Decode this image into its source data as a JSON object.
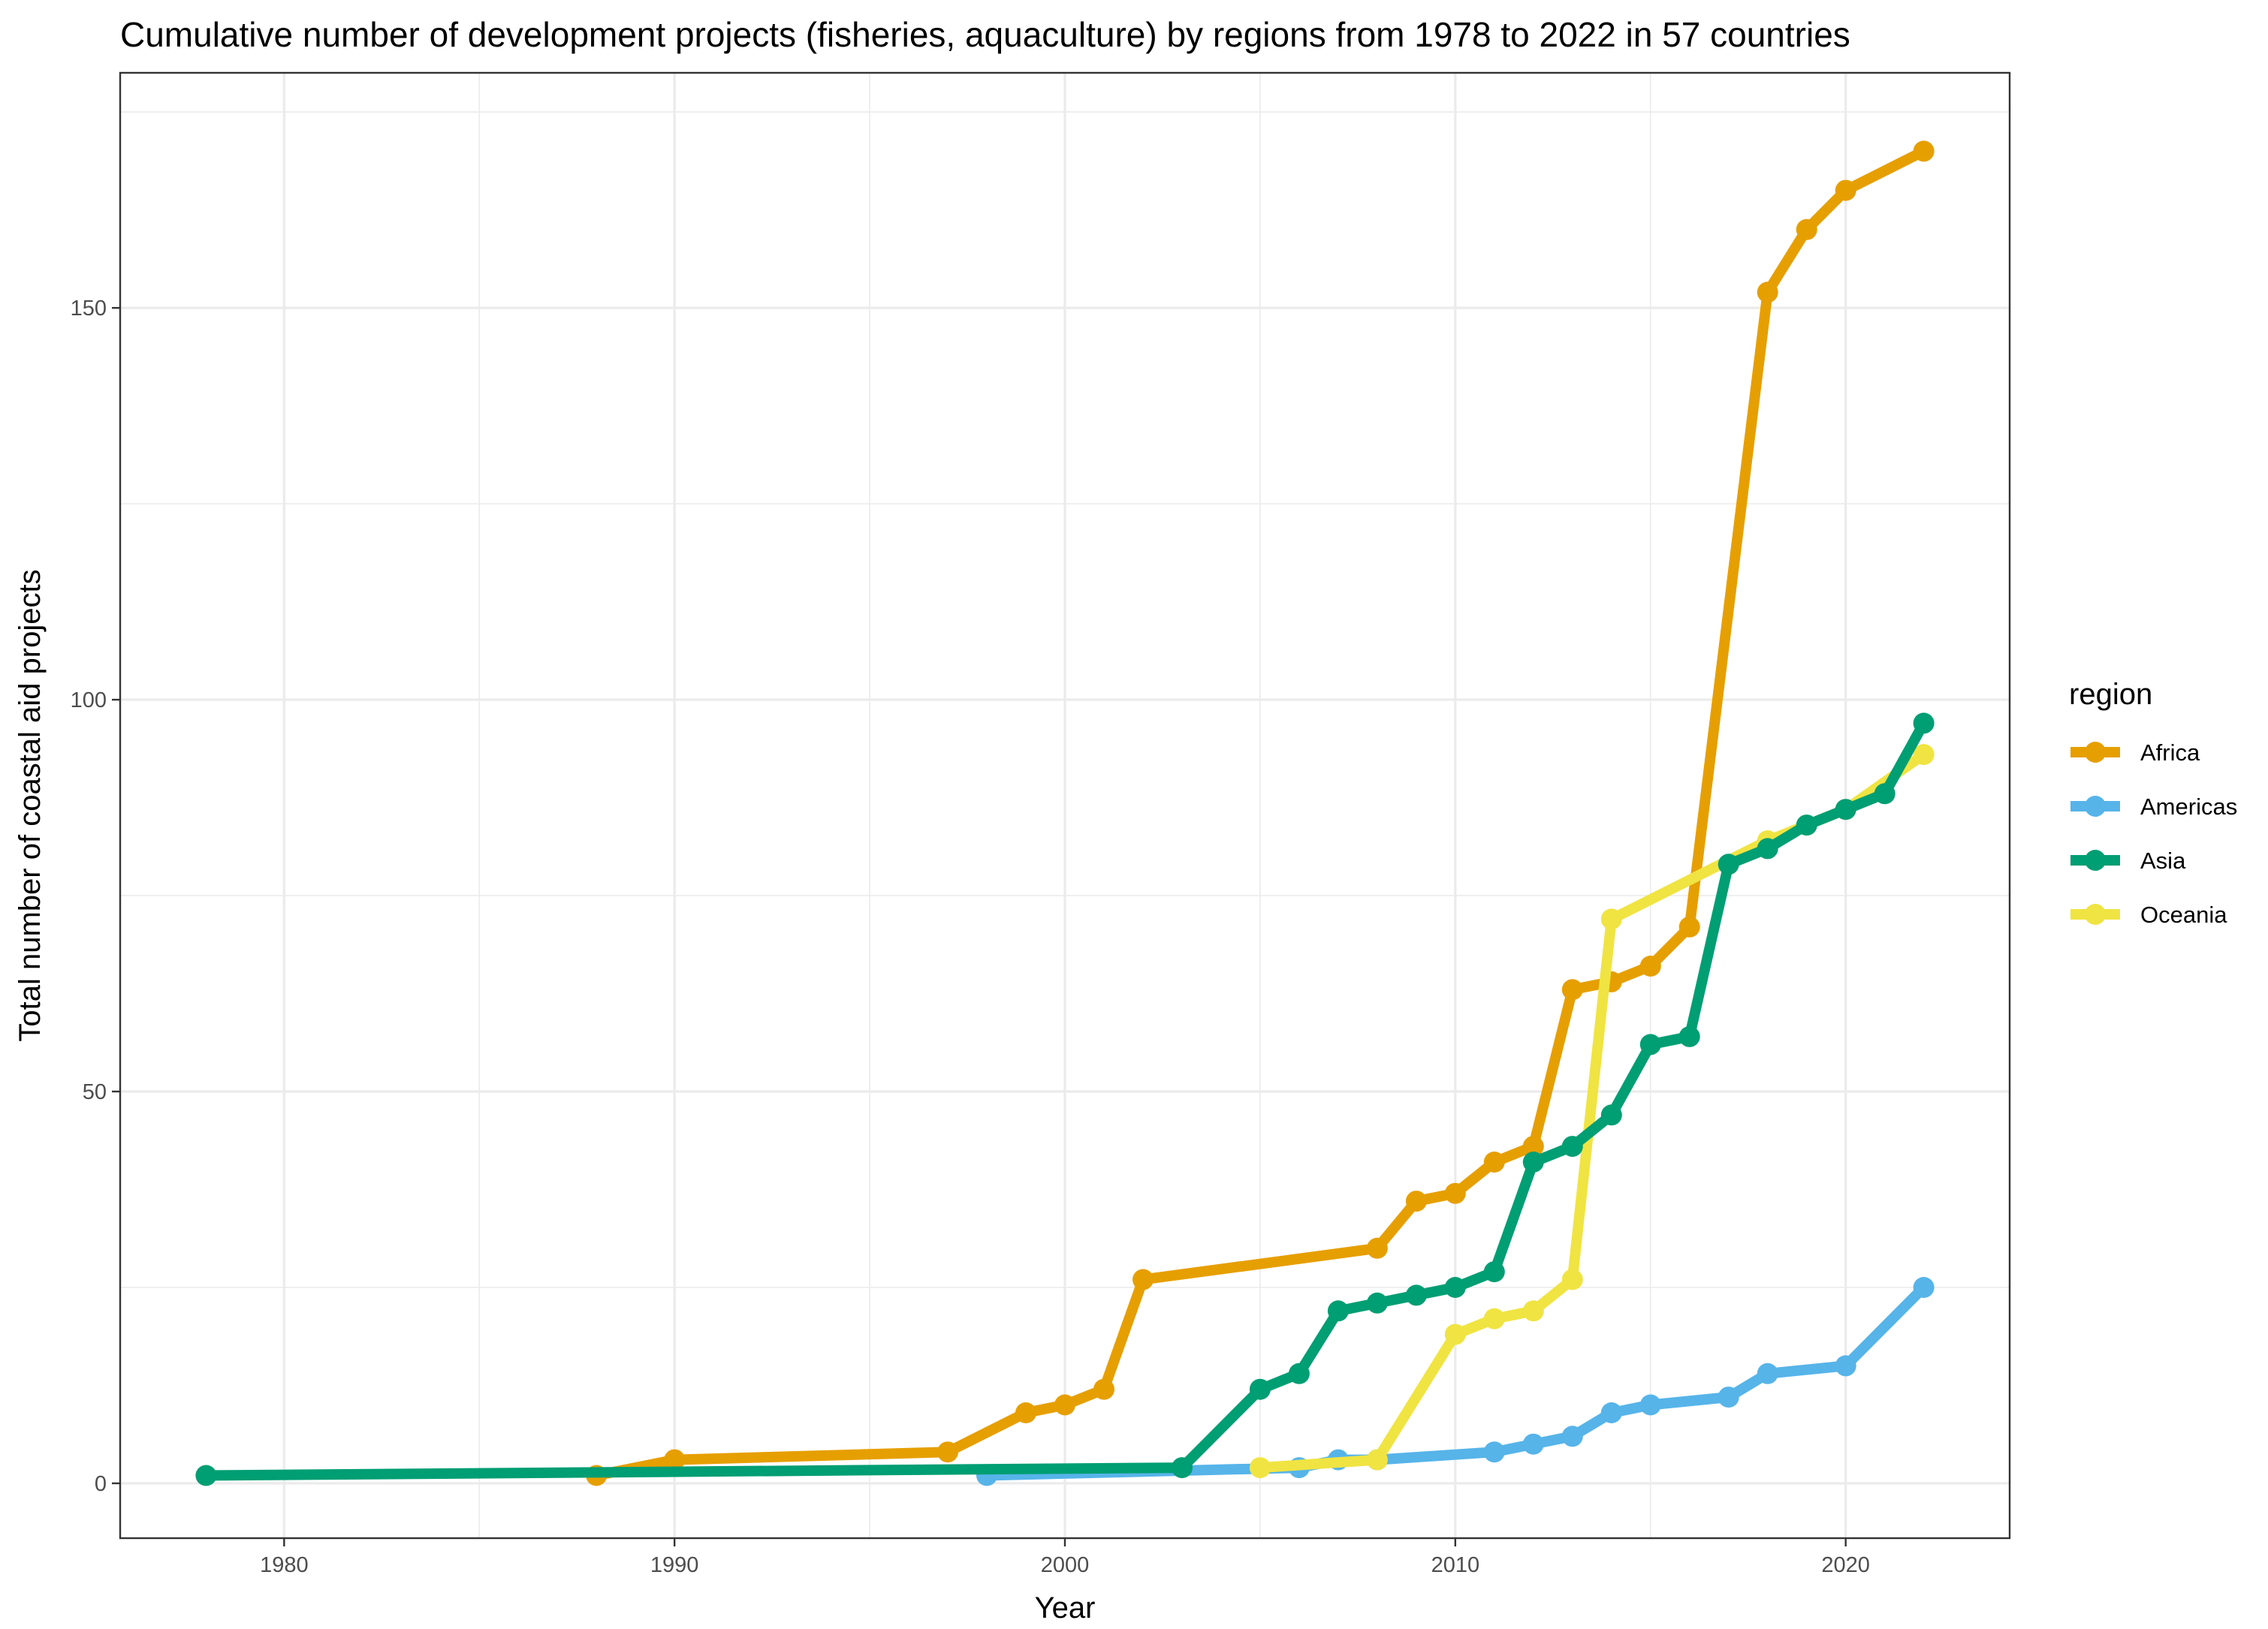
{
  "chart_data": {
    "type": "line",
    "title": "Cumulative number of development projects (fisheries, aquaculture) by regions from 1978 to 2022 in 57 countries",
    "xlabel": "Year",
    "ylabel": "Total number of coastal aid projects",
    "xlim": [
      1975.8,
      2024.2
    ],
    "ylim": [
      -7,
      180
    ],
    "x_ticks": [
      1980,
      1990,
      2000,
      2010,
      2020
    ],
    "y_ticks": [
      0,
      50,
      100,
      150
    ],
    "x_minor": [
      1985,
      1995,
      2005,
      2015
    ],
    "y_minor": [
      25,
      75,
      125,
      175
    ],
    "grid": true,
    "legend_title": "region",
    "legend_position": "right",
    "series": [
      {
        "name": "Africa",
        "color": "#E69F00",
        "points": [
          [
            1988,
            1
          ],
          [
            1990,
            3
          ],
          [
            1997,
            4
          ],
          [
            1999,
            9
          ],
          [
            2000,
            10
          ],
          [
            2001,
            12
          ],
          [
            2002,
            26
          ],
          [
            2008,
            30
          ],
          [
            2009,
            36
          ],
          [
            2010,
            37
          ],
          [
            2011,
            41
          ],
          [
            2012,
            43
          ],
          [
            2013,
            63
          ],
          [
            2014,
            64
          ],
          [
            2015,
            66
          ],
          [
            2016,
            71
          ],
          [
            2018,
            152
          ],
          [
            2019,
            160
          ],
          [
            2020,
            165
          ],
          [
            2022,
            170
          ]
        ]
      },
      {
        "name": "Americas",
        "color": "#56B4E9",
        "points": [
          [
            1998,
            1
          ],
          [
            2006,
            2
          ],
          [
            2007,
            3
          ],
          [
            2008,
            3
          ],
          [
            2011,
            4
          ],
          [
            2012,
            5
          ],
          [
            2013,
            6
          ],
          [
            2014,
            9
          ],
          [
            2015,
            10
          ],
          [
            2017,
            11
          ],
          [
            2018,
            14
          ],
          [
            2020,
            15
          ],
          [
            2022,
            25
          ]
        ]
      },
      {
        "name": "Asia",
        "color": "#009E73",
        "points": [
          [
            1978,
            1
          ],
          [
            2003,
            2
          ],
          [
            2005,
            12
          ],
          [
            2006,
            14
          ],
          [
            2007,
            22
          ],
          [
            2008,
            23
          ],
          [
            2009,
            24
          ],
          [
            2010,
            25
          ],
          [
            2011,
            27
          ],
          [
            2012,
            41
          ],
          [
            2013,
            43
          ],
          [
            2014,
            47
          ],
          [
            2015,
            56
          ],
          [
            2016,
            57
          ],
          [
            2017,
            79
          ],
          [
            2018,
            81
          ],
          [
            2019,
            84
          ],
          [
            2020,
            86
          ],
          [
            2021,
            88
          ],
          [
            2022,
            97
          ]
        ]
      },
      {
        "name": "Oceania",
        "color": "#F0E442",
        "points": [
          [
            2005,
            2
          ],
          [
            2008,
            3
          ],
          [
            2010,
            19
          ],
          [
            2011,
            21
          ],
          [
            2012,
            22
          ],
          [
            2013,
            26
          ],
          [
            2014,
            72
          ],
          [
            2018,
            82
          ],
          [
            2019,
            84
          ],
          [
            2020,
            86
          ],
          [
            2022,
            93
          ]
        ]
      }
    ]
  }
}
